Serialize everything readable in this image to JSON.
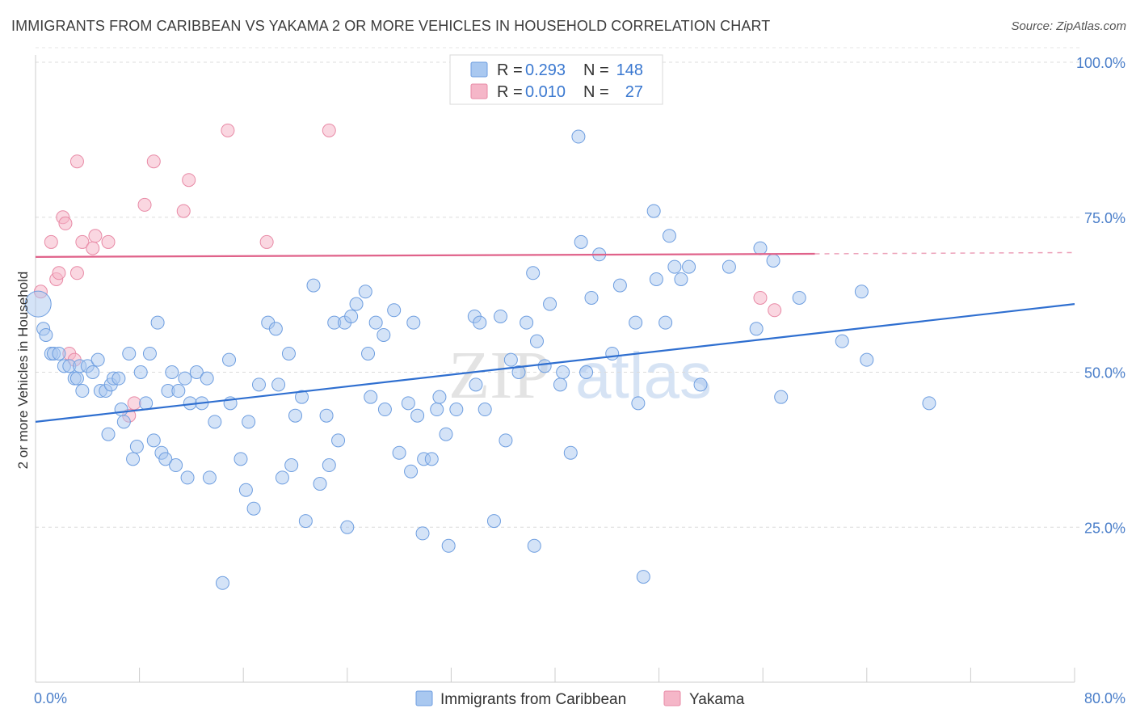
{
  "header": {
    "title": "IMMIGRANTS FROM CARIBBEAN VS YAKAMA 2 OR MORE VEHICLES IN HOUSEHOLD CORRELATION CHART",
    "source": "Source: ZipAtlas.com"
  },
  "watermark": {
    "zip": "ZIP",
    "atlas": "atlas"
  },
  "legend": {
    "rows": [
      {
        "r_label": "R =",
        "r_value": "0.293",
        "n_label": "N =",
        "n_value": "148",
        "color": "#a9c8f0"
      },
      {
        "r_label": "R =",
        "r_value": "0.010",
        "n_label": "N =",
        "n_value": "27",
        "color": "#f5b6c8"
      }
    ]
  },
  "bottom_legend": {
    "items": [
      {
        "label": "Immigrants from Caribbean",
        "color": "#a9c8f0"
      },
      {
        "label": "Yakama",
        "color": "#f5b6c8"
      }
    ]
  },
  "chart_data": {
    "type": "scatter",
    "title": "IMMIGRANTS FROM CARIBBEAN VS YAKAMA 2 OR MORE VEHICLES IN HOUSEHOLD CORRELATION CHART",
    "xlabel": "",
    "ylabel": "2 or more Vehicles in Household",
    "xlim": [
      0,
      80
    ],
    "ylim": [
      0,
      105
    ],
    "x_tick_labels": [
      "0.0%",
      "80.0%"
    ],
    "y_ticks": [
      25,
      50,
      75,
      100
    ],
    "y_tick_labels": [
      "25.0%",
      "50.0%",
      "75.0%",
      "100.0%"
    ],
    "grid": true,
    "legend_position": "top-center",
    "colors": {
      "caribbean_fill": "#a9c8f0",
      "caribbean_stroke": "#6e9ee0",
      "caribbean_line": "#2f6fd0",
      "yakama_fill": "#f5b6c8",
      "yakama_stroke": "#e88aa6",
      "yakama_line": "#e0628a"
    },
    "series": [
      {
        "name": "Immigrants from Caribbean",
        "trend": {
          "x": [
            0,
            80
          ],
          "y": [
            42,
            61
          ]
        },
        "points": [
          [
            0.2,
            61
          ],
          [
            0.6,
            57
          ],
          [
            0.8,
            56
          ],
          [
            1.2,
            53
          ],
          [
            1.4,
            53
          ],
          [
            1.8,
            53
          ],
          [
            2.2,
            51
          ],
          [
            2.6,
            51
          ],
          [
            3.0,
            49
          ],
          [
            3.2,
            49
          ],
          [
            3.4,
            51
          ],
          [
            3.6,
            47
          ],
          [
            4.0,
            51
          ],
          [
            4.4,
            50
          ],
          [
            4.8,
            52
          ],
          [
            5.0,
            47
          ],
          [
            5.4,
            47
          ],
          [
            5.6,
            40
          ],
          [
            5.8,
            48
          ],
          [
            6.0,
            49
          ],
          [
            6.4,
            49
          ],
          [
            6.6,
            44
          ],
          [
            6.8,
            42
          ],
          [
            7.2,
            53
          ],
          [
            7.5,
            36
          ],
          [
            7.8,
            38
          ],
          [
            8.1,
            50
          ],
          [
            8.5,
            45
          ],
          [
            8.8,
            53
          ],
          [
            9.1,
            39
          ],
          [
            9.4,
            58
          ],
          [
            9.7,
            37
          ],
          [
            10.0,
            36
          ],
          [
            10.2,
            47
          ],
          [
            10.5,
            50
          ],
          [
            10.8,
            35
          ],
          [
            11.0,
            47
          ],
          [
            11.5,
            49
          ],
          [
            11.7,
            33
          ],
          [
            11.9,
            45
          ],
          [
            12.4,
            50
          ],
          [
            12.8,
            45
          ],
          [
            13.2,
            49
          ],
          [
            13.4,
            33
          ],
          [
            13.8,
            42
          ],
          [
            14.4,
            16
          ],
          [
            14.9,
            52
          ],
          [
            15.0,
            45
          ],
          [
            15.8,
            36
          ],
          [
            16.2,
            31
          ],
          [
            16.4,
            42
          ],
          [
            16.8,
            28
          ],
          [
            17.2,
            48
          ],
          [
            17.9,
            58
          ],
          [
            18.5,
            57
          ],
          [
            18.7,
            48
          ],
          [
            19.0,
            33
          ],
          [
            19.5,
            53
          ],
          [
            19.7,
            35
          ],
          [
            20.0,
            43
          ],
          [
            20.5,
            46
          ],
          [
            20.8,
            26
          ],
          [
            21.4,
            64
          ],
          [
            21.9,
            32
          ],
          [
            22.4,
            43
          ],
          [
            22.6,
            35
          ],
          [
            23.0,
            58
          ],
          [
            23.3,
            39
          ],
          [
            23.8,
            58
          ],
          [
            24.0,
            25
          ],
          [
            24.3,
            59
          ],
          [
            24.7,
            61
          ],
          [
            25.4,
            63
          ],
          [
            25.6,
            53
          ],
          [
            25.8,
            46
          ],
          [
            26.2,
            58
          ],
          [
            26.8,
            56
          ],
          [
            26.9,
            44
          ],
          [
            27.6,
            60
          ],
          [
            28.0,
            37
          ],
          [
            28.7,
            45
          ],
          [
            28.9,
            34
          ],
          [
            29.1,
            58
          ],
          [
            29.4,
            43
          ],
          [
            29.8,
            24
          ],
          [
            29.9,
            36
          ],
          [
            30.5,
            36
          ],
          [
            30.9,
            44
          ],
          [
            31.1,
            46
          ],
          [
            31.6,
            40
          ],
          [
            31.8,
            22
          ],
          [
            32.4,
            44
          ],
          [
            33.8,
            59
          ],
          [
            33.9,
            48
          ],
          [
            34.2,
            58
          ],
          [
            34.6,
            44
          ],
          [
            35.3,
            26
          ],
          [
            35.8,
            59
          ],
          [
            36.2,
            39
          ],
          [
            36.6,
            52
          ],
          [
            37.2,
            50
          ],
          [
            37.8,
            58
          ],
          [
            38.3,
            66
          ],
          [
            38.4,
            22
          ],
          [
            38.6,
            55
          ],
          [
            39.2,
            51
          ],
          [
            39.6,
            61
          ],
          [
            40.4,
            48
          ],
          [
            40.6,
            50
          ],
          [
            41.2,
            37
          ],
          [
            41.8,
            88
          ],
          [
            42.0,
            71
          ],
          [
            42.4,
            50
          ],
          [
            42.8,
            62
          ],
          [
            43.4,
            69
          ],
          [
            44.4,
            53
          ],
          [
            45.0,
            64
          ],
          [
            46.2,
            58
          ],
          [
            46.4,
            45
          ],
          [
            46.8,
            17
          ],
          [
            47.6,
            76
          ],
          [
            47.8,
            65
          ],
          [
            48.5,
            58
          ],
          [
            48.8,
            72
          ],
          [
            49.2,
            67
          ],
          [
            49.7,
            65
          ],
          [
            50.3,
            67
          ],
          [
            51.2,
            48
          ],
          [
            53.4,
            67
          ],
          [
            55.5,
            57
          ],
          [
            55.8,
            70
          ],
          [
            56.8,
            68
          ],
          [
            57.4,
            46
          ],
          [
            58.8,
            62
          ],
          [
            62.1,
            55
          ],
          [
            63.6,
            63
          ],
          [
            64.0,
            52
          ],
          [
            68.8,
            45
          ]
        ]
      },
      {
        "name": "Yakama",
        "trend": {
          "x": [
            0,
            60
          ],
          "y": [
            68.6,
            69.1
          ]
        },
        "trend_dashed": {
          "x": [
            60,
            80
          ],
          "y": [
            69.1,
            69.3
          ]
        },
        "points": [
          [
            0.4,
            63
          ],
          [
            1.2,
            71
          ],
          [
            1.6,
            65
          ],
          [
            1.8,
            66
          ],
          [
            2.1,
            75
          ],
          [
            2.3,
            74
          ],
          [
            2.6,
            53
          ],
          [
            3.0,
            52
          ],
          [
            3.2,
            84
          ],
          [
            3.2,
            66
          ],
          [
            3.6,
            71
          ],
          [
            4.4,
            70
          ],
          [
            4.6,
            72
          ],
          [
            5.6,
            71
          ],
          [
            7.2,
            43
          ],
          [
            7.6,
            45
          ],
          [
            8.4,
            77
          ],
          [
            9.1,
            84
          ],
          [
            11.4,
            76
          ],
          [
            11.8,
            81
          ],
          [
            14.8,
            89
          ],
          [
            17.8,
            71
          ],
          [
            22.6,
            89
          ],
          [
            55.8,
            62
          ],
          [
            56.9,
            60
          ]
        ]
      }
    ]
  }
}
